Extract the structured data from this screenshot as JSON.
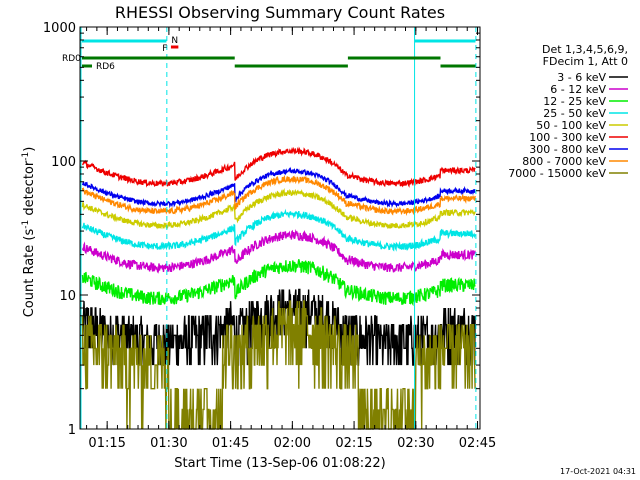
{
  "chart_data": {
    "type": "line",
    "title": "RHESSI Observing Summary Count Rates",
    "xlabel": "Start Time (13-Sep-06 01:08:22)",
    "ylabel": "Count Rate (s",
    "ylabel_sup1": "-1",
    "ylabel_mid": " detector",
    "ylabel_sup2": "-1",
    "ylabel_end": ")",
    "yscale": "log",
    "xlim_min": [
      68.4,
      165.6
    ],
    "ylim": [
      1,
      1000
    ],
    "x_ticks": [
      {
        "t": 75,
        "label": "01:15"
      },
      {
        "t": 90,
        "label": "01:30"
      },
      {
        "t": 105,
        "label": "01:45"
      },
      {
        "t": 120,
        "label": "02:00"
      },
      {
        "t": 135,
        "label": "02:15"
      },
      {
        "t": 150,
        "label": "02:30"
      },
      {
        "t": 165,
        "label": "02:45"
      }
    ],
    "y_ticks": [
      {
        "v": 1,
        "label": "1"
      },
      {
        "v": 10,
        "label": "10"
      },
      {
        "v": 100,
        "label": "100"
      },
      {
        "v": 1000,
        "label": "1000"
      }
    ],
    "legend_header": [
      "Det 1,3,4,5,6,9,",
      "FDecim 1, Att 0"
    ],
    "series": [
      {
        "name": "3 - 6 keV",
        "color": "#000000"
      },
      {
        "name": "6 - 12 keV",
        "color": "#cc00cc"
      },
      {
        "name": "12 - 25 keV",
        "color": "#00ee00"
      },
      {
        "name": "25 - 50 keV",
        "color": "#00e5e5"
      },
      {
        "name": "50 - 100 keV",
        "color": "#cccc00"
      },
      {
        "name": "100 - 300 keV",
        "color": "#ee0000"
      },
      {
        "name": "300 - 800 keV",
        "color": "#0000ee"
      },
      {
        "name": "800 - 7000 keV",
        "color": "#ff8800"
      },
      {
        "name": "7000 - 15000 keV",
        "color": "#808000"
      }
    ],
    "annotations": {
      "rd0": "RD0",
      "rd6": "RD6",
      "f": "F",
      "n": "N"
    },
    "timestamp": "17-Oct-2021 04:31"
  }
}
